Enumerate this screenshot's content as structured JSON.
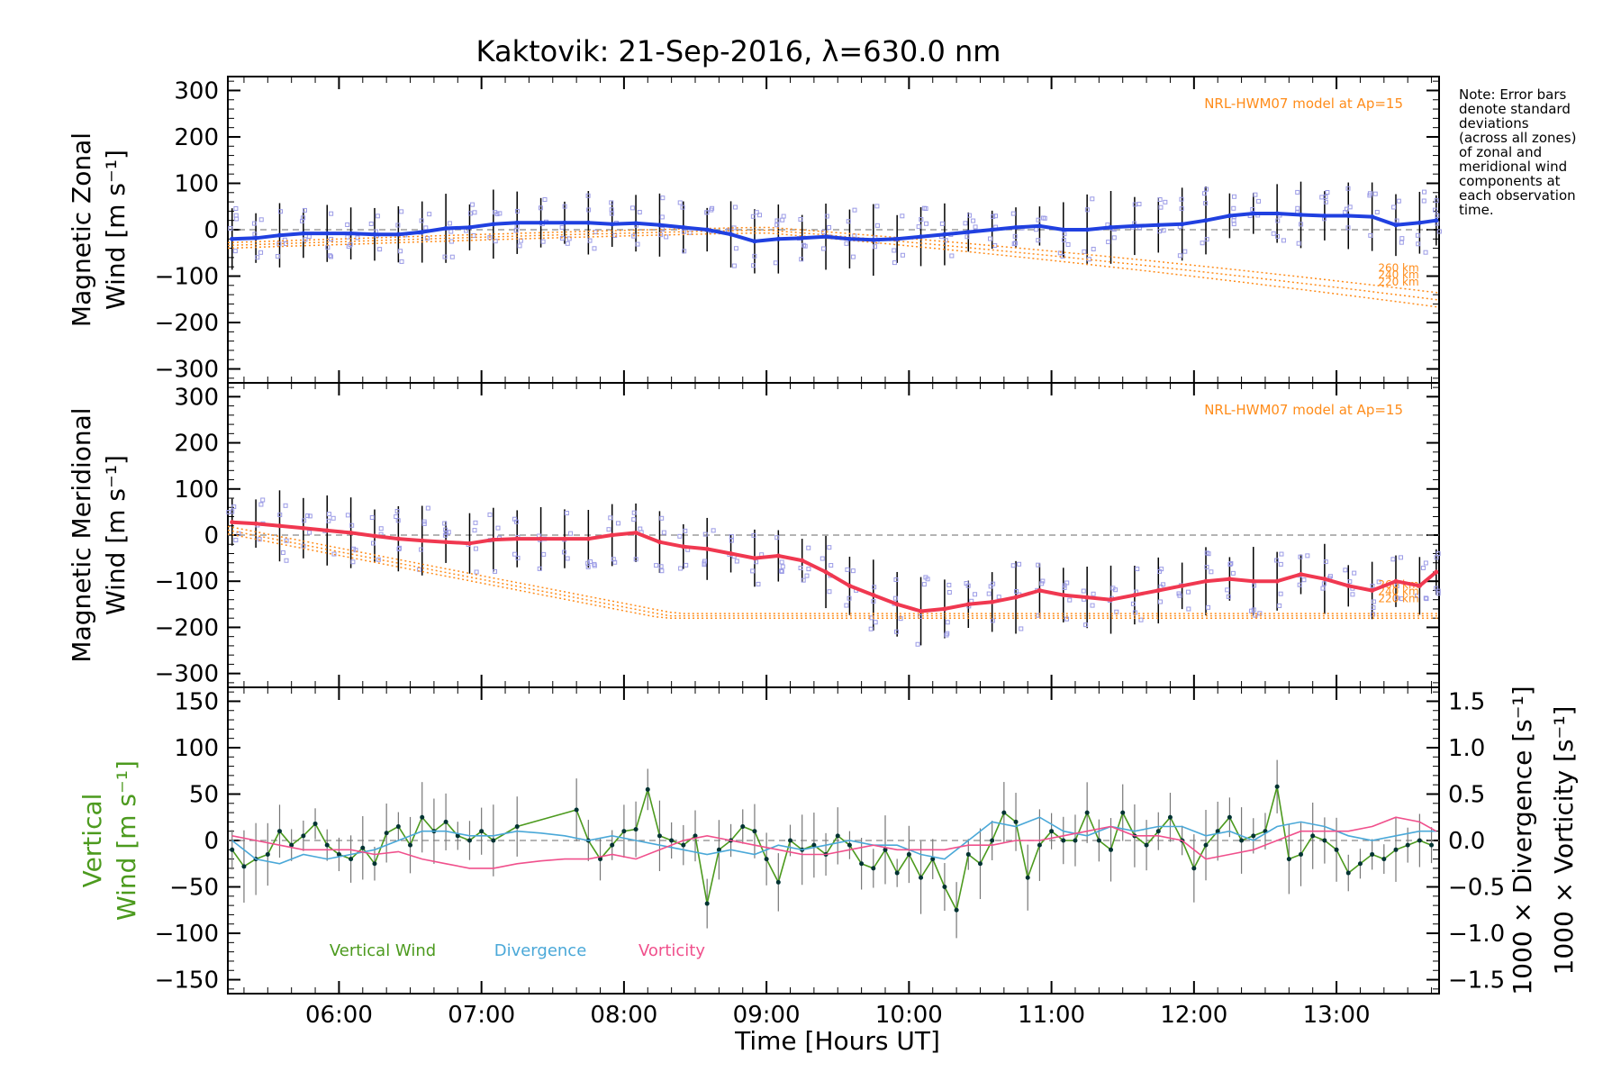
{
  "title": "Kaktovik: 21-Sep-2016, λ=630.0 nm",
  "note_lines": [
    "Note: Error bars",
    "denote standard",
    "deviations",
    "(across all zones)",
    "of zonal and",
    "meridional wind",
    "components at",
    "each observation",
    "time."
  ],
  "x_axis": {
    "label": "Time [Hours UT]",
    "range_hours": [
      5.22,
      13.72
    ],
    "ticks": [
      "06:00",
      "07:00",
      "08:00",
      "09:00",
      "10:00",
      "11:00",
      "12:00",
      "13:00"
    ]
  },
  "colors": {
    "zonal": "#2040e0",
    "meridional": "#f03850",
    "vertical": "#4c9a1e",
    "divergence": "#4aa8d8",
    "vorticity": "#f0508c",
    "model": "#ff8c1a",
    "zone_marker": "#9b9be6"
  },
  "chart_data": [
    {
      "type": "line",
      "panel": "zonal",
      "ylabel": [
        "Magnetic Zonal",
        "Wind [m s⁻¹]"
      ],
      "ylim": [
        -330,
        330
      ],
      "yticks": [
        "300",
        "200",
        "100",
        "0",
        "−100",
        "−200",
        "−300"
      ],
      "ytick_values": [
        300,
        200,
        100,
        0,
        -100,
        -200,
        -300
      ],
      "model_label": "NRL-HWM07 model at Ap=15",
      "altitude_labels": [
        "260 km",
        "240 km",
        "220 km"
      ],
      "series": [
        {
          "x": [
            "05:15",
            "05:25",
            "05:35",
            "05:45",
            "05:55",
            "06:05",
            "06:15",
            "06:25",
            "06:35",
            "06:45",
            "06:55",
            "07:05",
            "07:15",
            "07:25",
            "07:35",
            "07:45",
            "07:55",
            "08:05",
            "08:15",
            "08:25",
            "08:35",
            "08:45",
            "08:55",
            "09:05",
            "09:15",
            "09:25",
            "09:35",
            "09:45",
            "09:55",
            "10:05",
            "10:15",
            "10:25",
            "10:35",
            "10:45",
            "10:55",
            "11:05",
            "11:15",
            "11:25",
            "11:35",
            "11:45",
            "11:55",
            "12:05",
            "12:15",
            "12:25",
            "12:35",
            "12:45",
            "12:55",
            "13:05",
            "13:15",
            "13:25",
            "13:35",
            "13:42"
          ],
          "y": [
            -20,
            -18,
            -12,
            -8,
            -8,
            -8,
            -10,
            -10,
            -5,
            3,
            5,
            12,
            15,
            15,
            15,
            15,
            12,
            14,
            10,
            5,
            0,
            -10,
            -25,
            -20,
            -18,
            -15,
            -20,
            -22,
            -20,
            -15,
            -10,
            -5,
            0,
            5,
            8,
            0,
            0,
            5,
            8,
            10,
            12,
            20,
            30,
            35,
            35,
            32,
            30,
            30,
            28,
            10,
            15,
            20
          ]
        }
      ]
    },
    {
      "type": "line",
      "panel": "meridional",
      "ylabel": [
        "Magnetic Meridional",
        "Wind [m s⁻¹]"
      ],
      "ylim": [
        -330,
        330
      ],
      "yticks": [
        "300",
        "200",
        "100",
        "0",
        "−100",
        "−200",
        "−300"
      ],
      "ytick_values": [
        300,
        200,
        100,
        0,
        -100,
        -200,
        -300
      ],
      "model_label": "NRL-HWM07 model at Ap=15",
      "altitude_labels": [
        "260 km",
        "240 km",
        "220 km"
      ],
      "series": [
        {
          "x": [
            "05:15",
            "05:25",
            "05:35",
            "05:45",
            "05:55",
            "06:05",
            "06:15",
            "06:25",
            "06:35",
            "06:45",
            "06:55",
            "07:05",
            "07:15",
            "07:25",
            "07:35",
            "07:45",
            "07:55",
            "08:05",
            "08:15",
            "08:25",
            "08:35",
            "08:45",
            "08:55",
            "09:05",
            "09:15",
            "09:25",
            "09:35",
            "09:45",
            "09:55",
            "10:05",
            "10:15",
            "10:25",
            "10:35",
            "10:45",
            "10:55",
            "11:05",
            "11:15",
            "11:25",
            "11:35",
            "11:45",
            "11:55",
            "12:05",
            "12:15",
            "12:25",
            "12:35",
            "12:45",
            "12:55",
            "13:05",
            "13:15",
            "13:25",
            "13:35",
            "13:42"
          ],
          "y": [
            28,
            25,
            20,
            15,
            10,
            5,
            -2,
            -8,
            -12,
            -15,
            -18,
            -10,
            -8,
            -8,
            -8,
            -8,
            0,
            5,
            -15,
            -25,
            -30,
            -40,
            -50,
            -45,
            -55,
            -80,
            -110,
            -130,
            -150,
            -165,
            -160,
            -150,
            -145,
            -135,
            -120,
            -130,
            -135,
            -140,
            -130,
            -120,
            -110,
            -100,
            -95,
            -100,
            -100,
            -85,
            -95,
            -110,
            -120,
            -100,
            -110,
            -80
          ]
        }
      ]
    },
    {
      "type": "line",
      "panel": "vertical",
      "ylabel": [
        "Vertical",
        "Wind [m s⁻¹]"
      ],
      "ylim": [
        -165,
        165
      ],
      "yticks": [
        "150",
        "100",
        "50",
        "0",
        "−50",
        "−100",
        "−150"
      ],
      "ytick_values": [
        150,
        100,
        50,
        0,
        -50,
        -100,
        -150
      ],
      "y2label": [
        "1000 × Divergence [s⁻¹]",
        "1000 × Vorticity [s⁻¹]"
      ],
      "y2lim": [
        -1.65,
        1.65
      ],
      "y2ticks": [
        "1.5",
        "1.0",
        "0.5",
        "0.0",
        "−0.5",
        "−1.0",
        "−1.5"
      ],
      "y2tick_values": [
        1.5,
        1.0,
        0.5,
        0.0,
        -0.5,
        -1.0,
        -1.5
      ],
      "legend": [
        "Vertical Wind",
        "Divergence",
        "Vorticity"
      ],
      "series": [
        {
          "name": "Vertical Wind",
          "x": [
            "05:15",
            "05:20",
            "05:25",
            "05:30",
            "05:35",
            "05:40",
            "05:45",
            "05:50",
            "05:55",
            "06:00",
            "06:05",
            "06:10",
            "06:15",
            "06:20",
            "06:25",
            "06:30",
            "06:35",
            "06:40",
            "06:45",
            "06:50",
            "06:55",
            "07:00",
            "07:05",
            "07:15",
            "07:40",
            "07:45",
            "07:50",
            "07:55",
            "08:00",
            "08:05",
            "08:10",
            "08:15",
            "08:20",
            "08:25",
            "08:30",
            "08:35",
            "08:40",
            "08:45",
            "08:50",
            "08:55",
            "09:00",
            "09:05",
            "09:10",
            "09:15",
            "09:20",
            "09:25",
            "09:30",
            "09:35",
            "09:40",
            "09:45",
            "09:50",
            "09:55",
            "10:00",
            "10:05",
            "10:10",
            "10:15",
            "10:20",
            "10:25",
            "10:30",
            "10:35",
            "10:40",
            "10:45",
            "10:50",
            "10:55",
            "11:00",
            "11:05",
            "11:10",
            "11:15",
            "11:20",
            "11:25",
            "11:30",
            "11:35",
            "11:40",
            "11:45",
            "11:50",
            "11:55",
            "12:00",
            "12:05",
            "12:10",
            "12:15",
            "12:20",
            "12:25",
            "12:30",
            "12:35",
            "12:40",
            "12:45",
            "12:50",
            "12:55",
            "13:00",
            "13:05",
            "13:10",
            "13:15",
            "13:20",
            "13:25",
            "13:30",
            "13:35",
            "13:40"
          ],
          "y": [
            -10,
            -28,
            -20,
            -15,
            10,
            -5,
            5,
            18,
            -5,
            -15,
            -20,
            -8,
            -25,
            8,
            15,
            -5,
            25,
            10,
            20,
            5,
            0,
            10,
            0,
            15,
            33,
            0,
            -20,
            -5,
            10,
            12,
            55,
            5,
            0,
            -5,
            5,
            -68,
            -10,
            0,
            15,
            10,
            -20,
            -45,
            0,
            -10,
            -5,
            -15,
            5,
            -5,
            -25,
            -30,
            -10,
            -35,
            -15,
            -40,
            -20,
            -50,
            -75,
            -15,
            -25,
            0,
            30,
            20,
            -40,
            -5,
            10,
            0,
            0,
            30,
            0,
            -10,
            30,
            5,
            -5,
            10,
            25,
            0,
            -30,
            -5,
            10,
            25,
            0,
            5,
            10,
            58,
            -20,
            -15,
            5,
            0,
            -10,
            -35,
            -25,
            -15,
            -20,
            -10,
            -5,
            0,
            -5
          ]
        },
        {
          "name": "Divergence",
          "x": [
            "05:15",
            "05:25",
            "05:35",
            "05:45",
            "05:55",
            "06:05",
            "06:15",
            "06:25",
            "06:35",
            "06:45",
            "06:55",
            "07:05",
            "07:15",
            "07:25",
            "07:35",
            "07:45",
            "07:55",
            "08:05",
            "08:15",
            "08:25",
            "08:35",
            "08:45",
            "08:55",
            "09:05",
            "09:15",
            "09:25",
            "09:35",
            "09:45",
            "09:55",
            "10:05",
            "10:15",
            "10:25",
            "10:35",
            "10:45",
            "10:55",
            "11:05",
            "11:15",
            "11:25",
            "11:35",
            "11:45",
            "11:55",
            "12:05",
            "12:15",
            "12:25",
            "12:35",
            "12:45",
            "12:55",
            "13:05",
            "13:15",
            "13:25",
            "13:35",
            "13:42"
          ],
          "y": [
            0.0,
            -0.2,
            -0.25,
            -0.15,
            -0.2,
            -0.15,
            -0.1,
            0.0,
            0.1,
            0.1,
            0.05,
            0.05,
            0.1,
            0.08,
            0.05,
            0.0,
            0.05,
            0.0,
            -0.05,
            -0.1,
            -0.15,
            -0.1,
            -0.15,
            -0.05,
            -0.1,
            -0.05,
            0.0,
            -0.05,
            -0.05,
            -0.15,
            -0.2,
            0.0,
            0.2,
            0.15,
            0.25,
            0.1,
            0.05,
            0.15,
            0.1,
            0.15,
            0.15,
            0.05,
            0.1,
            0.0,
            0.15,
            0.2,
            0.15,
            0.05,
            0.0,
            0.05,
            0.1,
            0.1
          ]
        },
        {
          "name": "Vorticity",
          "x": [
            "05:15",
            "05:25",
            "05:35",
            "05:45",
            "05:55",
            "06:05",
            "06:15",
            "06:25",
            "06:35",
            "06:45",
            "06:55",
            "07:05",
            "07:15",
            "07:25",
            "07:35",
            "07:45",
            "07:55",
            "08:05",
            "08:15",
            "08:25",
            "08:35",
            "08:45",
            "08:55",
            "09:05",
            "09:15",
            "09:25",
            "09:35",
            "09:45",
            "09:55",
            "10:05",
            "10:15",
            "10:25",
            "10:35",
            "10:45",
            "10:55",
            "11:05",
            "11:15",
            "11:25",
            "11:35",
            "11:45",
            "11:55",
            "12:05",
            "12:15",
            "12:25",
            "12:35",
            "12:45",
            "12:55",
            "13:05",
            "13:15",
            "13:25",
            "13:35",
            "13:42"
          ],
          "y": [
            0.05,
            0.0,
            -0.05,
            -0.1,
            -0.1,
            -0.1,
            -0.15,
            -0.12,
            -0.2,
            -0.25,
            -0.3,
            -0.3,
            -0.25,
            -0.22,
            -0.2,
            -0.2,
            -0.15,
            -0.2,
            -0.1,
            0.0,
            0.05,
            0.0,
            -0.05,
            -0.1,
            -0.15,
            -0.15,
            -0.1,
            -0.05,
            -0.1,
            -0.1,
            -0.1,
            -0.05,
            -0.05,
            0.0,
            0.0,
            0.05,
            0.1,
            0.15,
            0.05,
            0.05,
            0.0,
            -0.2,
            -0.15,
            -0.1,
            0.0,
            0.1,
            0.1,
            0.1,
            0.15,
            0.25,
            0.2,
            0.1
          ]
        }
      ]
    }
  ]
}
